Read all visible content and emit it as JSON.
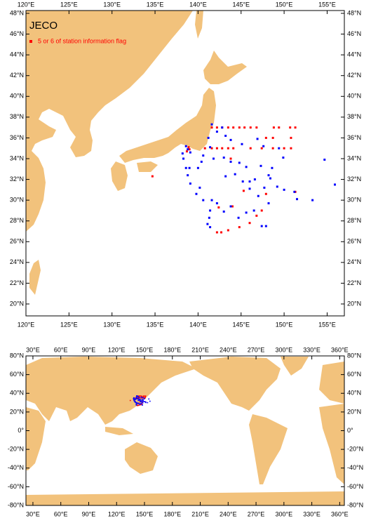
{
  "chart_data": [
    {
      "type": "map",
      "title": "JECO",
      "xlim": [
        120,
        157
      ],
      "ylim": [
        18.85,
        48.27
      ],
      "xticks": [
        {
          "value": 120,
          "label": "120°E"
        },
        {
          "value": 125,
          "label": "125°E"
        },
        {
          "value": 130,
          "label": "130°E"
        },
        {
          "value": 135,
          "label": "135°E"
        },
        {
          "value": 140,
          "label": "140°E"
        },
        {
          "value": 145,
          "label": "145°E"
        },
        {
          "value": 150,
          "label": "150°E"
        },
        {
          "value": 155,
          "label": "155°E"
        }
      ],
      "yticks": [
        {
          "value": 20,
          "label": "20°N"
        },
        {
          "value": 22,
          "label": "22°N"
        },
        {
          "value": 24,
          "label": "24°N"
        },
        {
          "value": 26,
          "label": "26°N"
        },
        {
          "value": 28,
          "label": "28°N"
        },
        {
          "value": 30,
          "label": "30°N"
        },
        {
          "value": 32,
          "label": "32°N"
        },
        {
          "value": 34,
          "label": "34°N"
        },
        {
          "value": 36,
          "label": "36°N"
        },
        {
          "value": 38,
          "label": "38°N"
        },
        {
          "value": 40,
          "label": "40°N"
        },
        {
          "value": 42,
          "label": "42°N"
        },
        {
          "value": 44,
          "label": "44°N"
        },
        {
          "value": 46,
          "label": "46°N"
        },
        {
          "value": 48,
          "label": "48°N"
        }
      ],
      "series": [
        {
          "name": "5 or 6 of station information flag",
          "color": "#ff0000",
          "x": [
            141.6,
            142.2,
            142.8,
            143.5,
            144.1,
            144.8,
            145.4,
            146.1,
            146.8,
            148.8,
            149.4,
            150.7,
            151.3,
            147.9,
            148.7,
            150.8,
            140.8,
            141.6,
            142.2,
            142.8,
            143.5,
            144.1,
            146.1,
            147.4,
            148.7,
            150.0,
            150.8,
            134.7,
            143.8,
            145.3,
            147.9,
            151.3,
            142.4,
            144.0,
            146.8,
            147.4,
            146.0,
            144.8,
            143.5,
            142.7,
            142.2,
            138.7,
            138.9,
            139.0
          ],
          "values": [
            37.0,
            37.0,
            37.0,
            37.0,
            37.0,
            37.0,
            37.0,
            37.0,
            37.0,
            37.0,
            37.0,
            37.0,
            37.0,
            36.0,
            36.0,
            36.0,
            35.0,
            35.0,
            35.0,
            35.0,
            35.0,
            35.0,
            35.0,
            35.0,
            35.0,
            35.0,
            35.0,
            32.3,
            34.0,
            30.9,
            30.6,
            30.8,
            29.3,
            29.4,
            28.5,
            29.0,
            27.8,
            27.4,
            27.1,
            26.9,
            26.9,
            34.7,
            35.1,
            34.9
          ]
        },
        {
          "color": "#0000ff",
          "x": [
            141.6,
            142.2,
            142.8,
            141.2,
            141.4,
            143.2,
            143.8,
            145.1,
            146.9,
            147.6,
            149.4,
            149.9,
            148.6,
            148.2,
            148.4,
            147.3,
            145.6,
            144.8,
            143.8,
            143.0,
            141.8,
            140.6,
            140.0,
            139.0,
            138.3,
            138.6,
            138.8,
            139.1,
            139.8,
            140.2,
            140.6,
            141.4,
            141.3,
            141.1,
            141.4,
            141.6,
            142.2,
            143.0,
            144.7,
            145.2,
            146.0,
            146.6,
            147.7,
            149.2,
            150.0,
            151.2,
            151.5,
            153.3,
            154.7,
            155.9,
            148.2,
            146.5,
            145.6,
            147.4,
            147.9,
            144.3,
            143.2,
            146.0,
            147.0,
            143.8,
            138.2,
            140.4,
            138.8,
            139.1,
            138.6
          ],
          "values": [
            37.3,
            36.6,
            37.0,
            36.0,
            35.1,
            36.2,
            35.8,
            35.4,
            35.9,
            35.2,
            35.0,
            34.1,
            33.1,
            32.4,
            32.1,
            33.3,
            33.2,
            33.6,
            33.7,
            34.1,
            34.0,
            34.3,
            33.1,
            33.1,
            34.0,
            33.1,
            32.4,
            31.6,
            30.6,
            31.2,
            30.0,
            29.0,
            28.3,
            27.7,
            27.4,
            30.0,
            29.7,
            28.9,
            28.3,
            31.8,
            31.8,
            32.0,
            31.2,
            31.3,
            31.0,
            30.8,
            30.1,
            30.0,
            33.9,
            31.5,
            29.7,
            29.0,
            28.8,
            27.5,
            27.5,
            32.5,
            32.3,
            31.1,
            30.4,
            29.4,
            34.5,
            33.7,
            34.9,
            34.6,
            35.2
          ]
        }
      ]
    },
    {
      "type": "map",
      "xlim": [
        22.5,
        365
      ],
      "ylim": [
        -80,
        80
      ],
      "xticks": [
        {
          "value": 30,
          "label": "30°E"
        },
        {
          "value": 60,
          "label": "60°E"
        },
        {
          "value": 90,
          "label": "90°E"
        },
        {
          "value": 120,
          "label": "120°E"
        },
        {
          "value": 150,
          "label": "150°E"
        },
        {
          "value": 180,
          "label": "180°E"
        },
        {
          "value": 210,
          "label": "210°E"
        },
        {
          "value": 240,
          "label": "240°E"
        },
        {
          "value": 270,
          "label": "270°E"
        },
        {
          "value": 300,
          "label": "300°E"
        },
        {
          "value": 330,
          "label": "330°E"
        },
        {
          "value": 360,
          "label": "360°E"
        }
      ],
      "yticks": [
        {
          "value": -80,
          "label": "-80°N"
        },
        {
          "value": -60,
          "label": "-60°N"
        },
        {
          "value": -40,
          "label": "-40°N"
        },
        {
          "value": -20,
          "label": "-20°N"
        },
        {
          "value": 0,
          "label": "0°"
        },
        {
          "value": 20,
          "label": "20°N"
        },
        {
          "value": 40,
          "label": "40°N"
        },
        {
          "value": 60,
          "label": "60°N"
        },
        {
          "value": 80,
          "label": "80°N"
        }
      ]
    }
  ]
}
